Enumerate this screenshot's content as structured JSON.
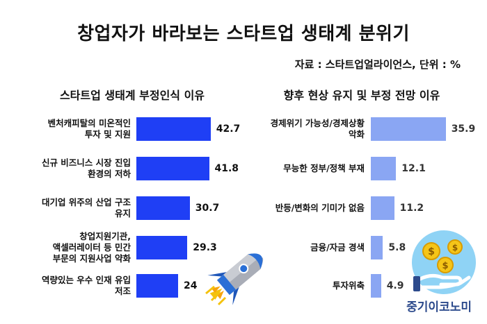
{
  "title": "창업자가 바라보는 스타트업 생태계 분위기",
  "source_note": "자료 : 스타트업얼라이언스, 단위 : %",
  "brand": "중기이코노미",
  "icons": {
    "rocket": "rocket-icon",
    "coins": "coins-hand-icon"
  },
  "colors": {
    "left_bar": "#1f3ff5",
    "right_bar": "#8aa6f3"
  },
  "chart_data": [
    {
      "type": "bar",
      "orientation": "horizontal",
      "title": "스타트업 생태계 부정인식 이유",
      "categories": [
        "벤처캐피탈의 미온적인\n투자 및 지원",
        "신규 비즈니스 시장 진입\n환경의 저하",
        "대기업 위주의 산업 구조\n유지",
        "창업지원기관,\n액셀러레이터 등 민간\n부문의 지원사업 약화",
        "역량있는 우수 인재 유입\n저조"
      ],
      "values": [
        42.7,
        41.8,
        30.7,
        29.3,
        24
      ],
      "labels": [
        "42.7",
        "41.8",
        "30.7",
        "29.3",
        "24"
      ]
    },
    {
      "type": "bar",
      "orientation": "horizontal",
      "title": "향후 현상 유지 및 부정 전망 이유",
      "categories": [
        "경제위기 가능성/경제상황\n악화",
        "무능한 정부/정책 부재",
        "반등/변화의 기미가 없음",
        "금융/자금 경색",
        "투자위축"
      ],
      "values": [
        35.9,
        12.1,
        11.2,
        5.8,
        4.9
      ],
      "labels": [
        "35.9",
        "12.1",
        "11.2",
        "5.8",
        "4.9"
      ]
    }
  ]
}
